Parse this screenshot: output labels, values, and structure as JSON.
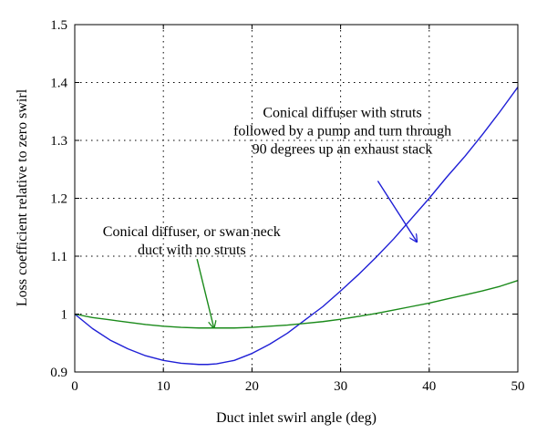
{
  "chart_data": {
    "type": "line",
    "title": "",
    "xlabel": "Duct inlet swirl angle (deg)",
    "ylabel": "Loss coefficient relative to zero swirl",
    "xlim": [
      0,
      50
    ],
    "ylim": [
      0.9,
      1.5
    ],
    "xticks": [
      0,
      10,
      20,
      30,
      40,
      50
    ],
    "yticks": [
      0.9,
      1,
      1.1,
      1.2,
      1.3,
      1.4,
      1.5
    ],
    "xtick_labels": [
      "0",
      "10",
      "20",
      "30",
      "40",
      "50"
    ],
    "ytick_labels": [
      "0.9",
      "1",
      "1.1",
      "1.2",
      "1.3",
      "1.4",
      "1.5"
    ],
    "grid": true,
    "series": [
      {
        "color": "#1f1fd6",
        "x": [
          0,
          2,
          4,
          6,
          8,
          10,
          12,
          14,
          15,
          16,
          18,
          20,
          22,
          24,
          26,
          28,
          30,
          32,
          34,
          36,
          38,
          40,
          42,
          44,
          46,
          48,
          50
        ],
        "y": [
          1.0,
          0.975,
          0.955,
          0.94,
          0.928,
          0.92,
          0.915,
          0.913,
          0.913,
          0.914,
          0.92,
          0.932,
          0.948,
          0.967,
          0.99,
          1.013,
          1.04,
          1.068,
          1.098,
          1.13,
          1.165,
          1.2,
          1.237,
          1.272,
          1.31,
          1.35,
          1.392
        ]
      },
      {
        "color": "#1a8a1a",
        "x": [
          0,
          2,
          4,
          6,
          8,
          10,
          12,
          14,
          16,
          18,
          20,
          22,
          24,
          26,
          28,
          30,
          32,
          34,
          36,
          38,
          40,
          42,
          44,
          46,
          48,
          50
        ],
        "y": [
          1.0,
          0.994,
          0.99,
          0.986,
          0.982,
          0.979,
          0.977,
          0.976,
          0.976,
          0.976,
          0.977,
          0.979,
          0.981,
          0.984,
          0.987,
          0.991,
          0.996,
          1.001,
          1.007,
          1.013,
          1.019,
          1.026,
          1.033,
          1.04,
          1.048,
          1.058
        ]
      }
    ],
    "annotations": [
      {
        "lines": [
          "Conical diffuser with struts",
          "followed by a pump and turn through",
          "90 degrees up an exhaust stack"
        ],
        "color": "#1f1fd6",
        "text_at": [
          30.2,
          1.34
        ],
        "arrow_from": [
          34.2,
          1.23
        ],
        "arrow_to": [
          38.6,
          1.125
        ]
      },
      {
        "lines": [
          "Conical diffuser, or swan neck",
          "duct with no struts"
        ],
        "color": "#1a8a1a",
        "text_at": [
          13.2,
          1.135
        ],
        "arrow_from": [
          13.8,
          1.095
        ],
        "arrow_to": [
          15.7,
          0.976
        ]
      }
    ]
  }
}
